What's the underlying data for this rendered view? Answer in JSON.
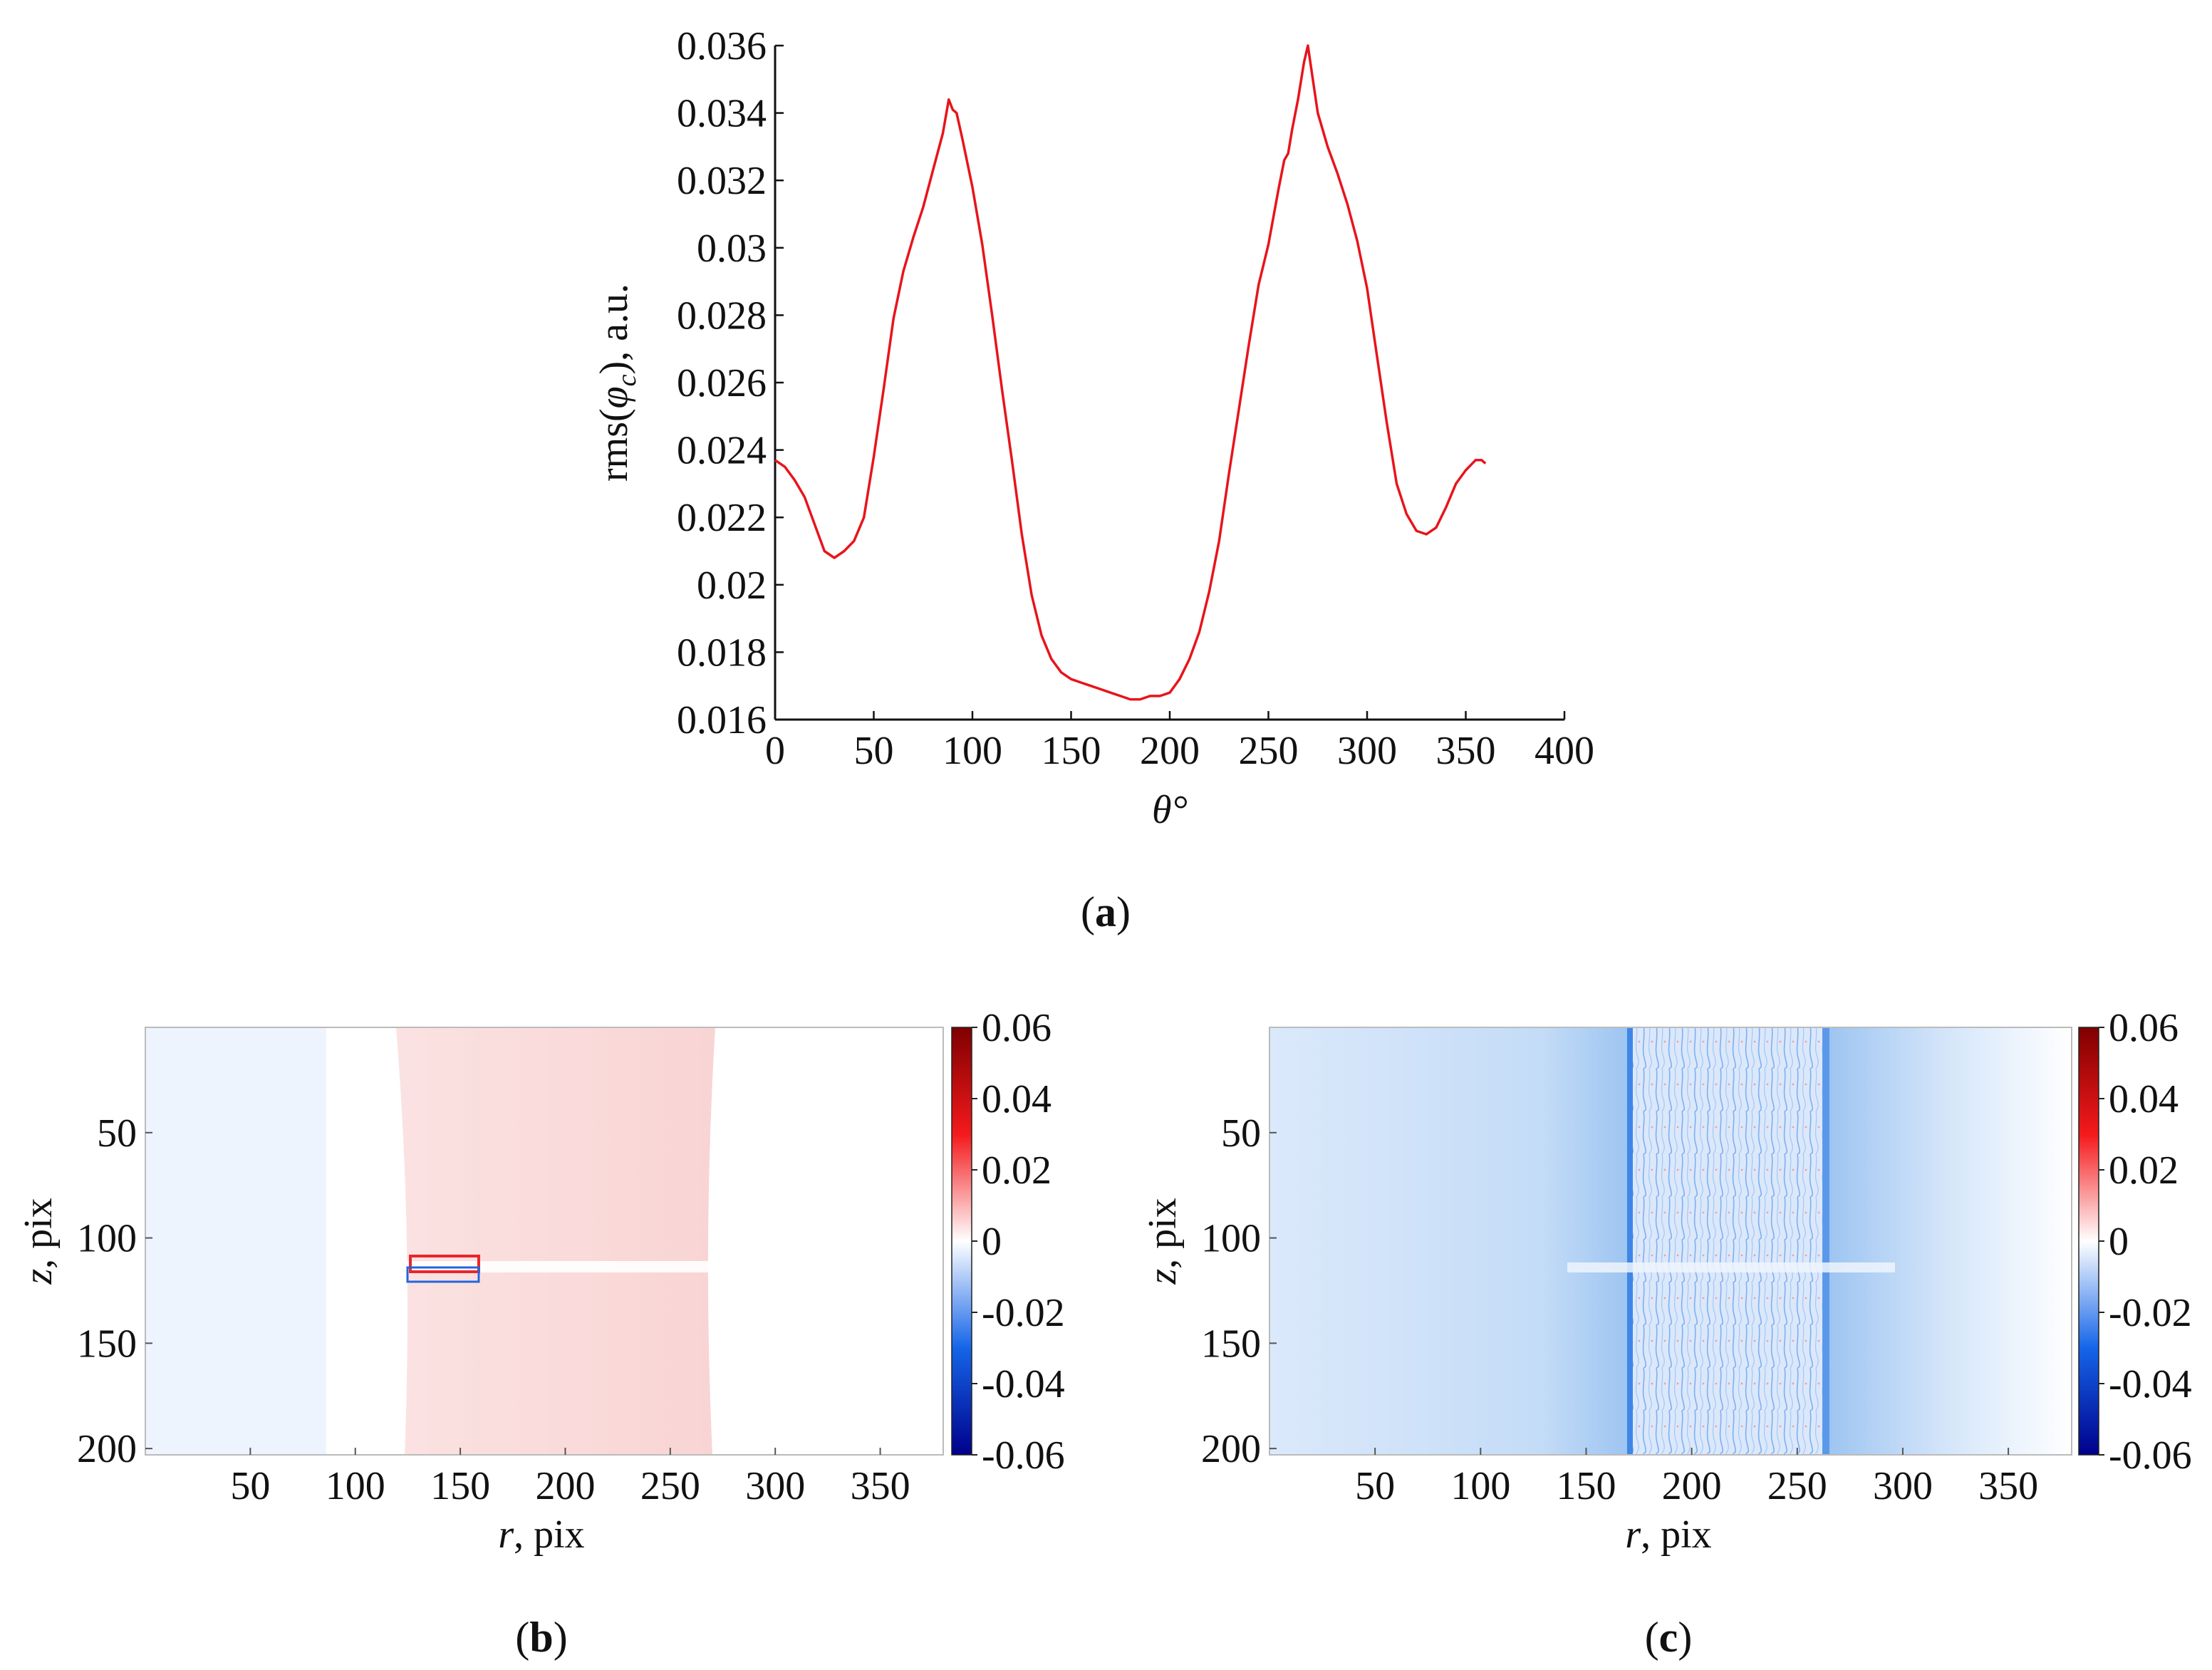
{
  "chart_data": [
    {
      "panel": "a",
      "caption_open": "(",
      "caption_letter": "a",
      "caption_close": ")",
      "type": "line",
      "xlabel": "θ°",
      "ylabel": "rms(φ_c), a.u.",
      "xlim": [
        0,
        400
      ],
      "ylim": [
        0.016,
        0.036
      ],
      "xticks": [
        "0",
        "50",
        "100",
        "150",
        "200",
        "250",
        "300",
        "350",
        "400"
      ],
      "yticks": [
        "0.016",
        "0.018",
        "0.02",
        "0.022",
        "0.024",
        "0.026",
        "0.028",
        "0.03",
        "0.032",
        "0.034",
        "0.036"
      ],
      "grid": false,
      "series": [
        {
          "color": "#e8141b",
          "x": [
            0,
            5,
            10,
            15,
            20,
            25,
            30,
            35,
            40,
            45,
            50,
            55,
            60,
            65,
            70,
            75,
            80,
            85,
            88,
            90,
            92,
            95,
            100,
            105,
            110,
            115,
            120,
            125,
            130,
            135,
            140,
            145,
            150,
            155,
            160,
            165,
            170,
            175,
            180,
            185,
            190,
            195,
            200,
            205,
            210,
            215,
            220,
            225,
            230,
            235,
            240,
            245,
            250,
            255,
            258,
            260,
            262,
            265,
            268,
            270,
            272,
            275,
            280,
            285,
            290,
            295,
            300,
            305,
            310,
            315,
            320,
            325,
            330,
            335,
            340,
            345,
            350,
            355,
            358,
            360
          ],
          "y": [
            0.0237,
            0.0235,
            0.0231,
            0.0226,
            0.0218,
            0.021,
            0.0208,
            0.021,
            0.0213,
            0.022,
            0.0238,
            0.0258,
            0.0279,
            0.0293,
            0.0303,
            0.0312,
            0.0323,
            0.0334,
            0.0344,
            0.0341,
            0.034,
            0.0332,
            0.0318,
            0.0301,
            0.028,
            0.0258,
            0.0237,
            0.0215,
            0.0197,
            0.0185,
            0.0178,
            0.0174,
            0.0172,
            0.0171,
            0.017,
            0.0169,
            0.0168,
            0.0167,
            0.0166,
            0.0166,
            0.0167,
            0.0167,
            0.0168,
            0.0172,
            0.0178,
            0.0186,
            0.0198,
            0.0213,
            0.0233,
            0.0252,
            0.0271,
            0.0289,
            0.0301,
            0.0317,
            0.0326,
            0.0328,
            0.0335,
            0.0344,
            0.0355,
            0.036,
            0.0352,
            0.034,
            0.033,
            0.0322,
            0.0313,
            0.0302,
            0.0288,
            0.0268,
            0.0248,
            0.023,
            0.0221,
            0.0216,
            0.0215,
            0.0217,
            0.0223,
            0.023,
            0.0234,
            0.0237,
            0.0237,
            0.0236
          ]
        }
      ]
    },
    {
      "panel": "b",
      "caption_open": "(",
      "caption_letter": "b",
      "caption_close": ")",
      "type": "heatmap",
      "xlabel_var": "r",
      "xlabel_rest": ", pix",
      "ylabel_var": "z",
      "ylabel_rest": ", pix",
      "xlim": [
        0,
        380
      ],
      "ylim": [
        203,
        0
      ],
      "xticks": [
        "50",
        "100",
        "150",
        "200",
        "250",
        "300",
        "350"
      ],
      "yticks": [
        "50",
        "100",
        "150",
        "200"
      ],
      "colorbar_ticks": [
        "0.06",
        "0.04",
        "0.02",
        "0",
        "-0.02",
        "-0.04",
        "-0.06"
      ],
      "colorbar_range": [
        -0.06,
        0.06
      ],
      "colormap": [
        "#00008b",
        "#1565e8",
        "#ffffff",
        "#f4191c",
        "#7f0000"
      ],
      "regions": [
        {
          "r": [
            0,
            122
          ],
          "z": [
            0,
            203
          ],
          "value": -0.002
        },
        {
          "r": [
            122,
            268
          ],
          "z": [
            0,
            203
          ],
          "value": 0.006
        },
        {
          "r": [
            268,
            380
          ],
          "z": [
            0,
            203
          ],
          "value": 0.0
        }
      ],
      "features": [
        {
          "type": "horizontal band",
          "z": 117,
          "r": [
            125,
            380
          ],
          "value": 0.0
        },
        {
          "type": "rectangle edge",
          "r": [
            126,
            158
          ],
          "z": [
            110,
            121
          ],
          "value": 0.05
        }
      ]
    },
    {
      "panel": "c",
      "caption_open": "(",
      "caption_letter": "c",
      "caption_close": ")",
      "type": "heatmap",
      "xlabel_var": "r",
      "xlabel_rest": ", pix",
      "ylabel_var": "z",
      "ylabel_rest": ", pix",
      "xlim": [
        0,
        380
      ],
      "ylim": [
        203,
        0
      ],
      "xticks": [
        "50",
        "100",
        "150",
        "200",
        "250",
        "300",
        "350"
      ],
      "yticks": [
        "50",
        "100",
        "150",
        "200"
      ],
      "colorbar_ticks": [
        "0.06",
        "0.04",
        "0.02",
        "0",
        "-0.02",
        "-0.04",
        "-0.06"
      ],
      "colorbar_range": [
        -0.06,
        0.06
      ],
      "colormap": [
        "#00008b",
        "#1565e8",
        "#ffffff",
        "#f4191c",
        "#7f0000"
      ],
      "regions": [
        {
          "r": [
            0,
            150
          ],
          "z": [
            0,
            203
          ],
          "value": -0.008
        },
        {
          "r": [
            150,
            170
          ],
          "z": [
            0,
            203
          ],
          "value": -0.012
        },
        {
          "r": [
            170,
            264
          ],
          "z": [
            0,
            203
          ],
          "value": -0.006
        },
        {
          "r": [
            264,
            310
          ],
          "z": [
            0,
            203
          ],
          "value": -0.006
        },
        {
          "r": [
            310,
            380
          ],
          "z": [
            0,
            203
          ],
          "value": -0.001
        }
      ],
      "features": [
        {
          "type": "vertical edge",
          "r": 171,
          "value": -0.03
        },
        {
          "type": "vertical edge",
          "r": 264,
          "value": -0.025
        },
        {
          "type": "horizontal band",
          "z": 117,
          "r": [
            140,
            320
          ],
          "value": 0.0
        }
      ]
    }
  ]
}
